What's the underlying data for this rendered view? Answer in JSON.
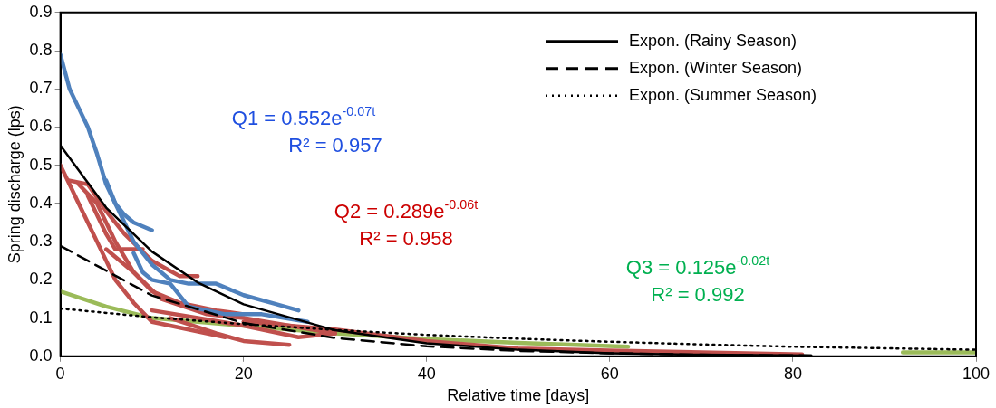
{
  "chart_data": {
    "type": "line",
    "xlabel": "Relative time [days]",
    "ylabel": "Spring discharge (lps)",
    "xlim": [
      0,
      100
    ],
    "xticks": [
      0,
      20,
      40,
      60,
      80,
      100
    ],
    "ylim": [
      0,
      0.9
    ],
    "yticks": [
      {
        "value": 0,
        "label": "0.0"
      },
      {
        "value": 0.1,
        "label": "0.1"
      },
      {
        "value": 0.2,
        "label": "0.2"
      },
      {
        "value": 0.3,
        "label": "0.3"
      },
      {
        "value": 0.4,
        "label": "0.4"
      },
      {
        "value": 0.5,
        "label": "0.5"
      },
      {
        "value": 0.6,
        "label": "0.6"
      },
      {
        "value": 0.7,
        "label": "0.7"
      },
      {
        "value": 0.8,
        "label": "0.8"
      },
      {
        "value": 0.9,
        "label": "0.9"
      }
    ],
    "grid": false,
    "legend": "top right",
    "marker": "none",
    "series": [
      {
        "color": "#4f81bd",
        "x": [
          0,
          1,
          2,
          3,
          4,
          5,
          6,
          7,
          8,
          9,
          10
        ],
        "values": [
          0.79,
          0.7,
          0.65,
          0.6,
          0.53,
          0.45,
          0.4,
          0.37,
          0.35,
          0.34,
          0.33
        ]
      },
      {
        "color": "#4f81bd",
        "x": [
          5,
          6,
          8,
          10,
          12,
          14,
          17,
          20,
          23,
          26
        ],
        "values": [
          0.46,
          0.4,
          0.3,
          0.24,
          0.2,
          0.19,
          0.19,
          0.16,
          0.14,
          0.12
        ]
      },
      {
        "color": "#4f81bd",
        "x": [
          8,
          9,
          10,
          12,
          14,
          18,
          22,
          27
        ],
        "values": [
          0.27,
          0.22,
          0.2,
          0.19,
          0.13,
          0.11,
          0.11,
          0.09
        ]
      },
      {
        "color": "#c0504d",
        "x": [
          0,
          2,
          4,
          6,
          8,
          10,
          14,
          18
        ],
        "values": [
          0.5,
          0.4,
          0.3,
          0.2,
          0.14,
          0.09,
          0.07,
          0.05
        ]
      },
      {
        "color": "#c0504d",
        "x": [
          1,
          3,
          5,
          7,
          10,
          13,
          15
        ],
        "values": [
          0.46,
          0.45,
          0.38,
          0.32,
          0.25,
          0.21,
          0.21
        ]
      },
      {
        "color": "#c0504d",
        "x": [
          2,
          4,
          6,
          8,
          10,
          13,
          17,
          20
        ],
        "values": [
          0.45,
          0.4,
          0.3,
          0.22,
          0.17,
          0.14,
          0.12,
          0.11
        ]
      },
      {
        "color": "#c0504d",
        "x": [
          3,
          5,
          6,
          9
        ],
        "values": [
          0.42,
          0.32,
          0.28,
          0.28
        ]
      },
      {
        "color": "#c0504d",
        "x": [
          5,
          8,
          11,
          16,
          20,
          25,
          30
        ],
        "values": [
          0.28,
          0.22,
          0.15,
          0.11,
          0.1,
          0.08,
          0.06
        ]
      },
      {
        "color": "#c0504d",
        "x": [
          10,
          15,
          20,
          26,
          30
        ],
        "values": [
          0.12,
          0.1,
          0.08,
          0.05,
          0.06
        ]
      },
      {
        "color": "#c0504d",
        "x": [
          12,
          17,
          20,
          25
        ],
        "values": [
          0.1,
          0.06,
          0.04,
          0.03
        ]
      },
      {
        "color": "#c0504d",
        "x": [
          20,
          30,
          40,
          50,
          60,
          70,
          81
        ],
        "values": [
          0.09,
          0.07,
          0.04,
          0.02,
          0.015,
          0.01,
          0.005
        ]
      },
      {
        "color": "#9bbb59",
        "x": [
          0,
          5,
          10,
          15,
          20,
          30,
          40,
          50,
          62,
          75,
          92,
          100
        ],
        "values": [
          0.17,
          0.13,
          0.1,
          0.09,
          0.08,
          0.06,
          0.045,
          0.035,
          0.025,
          null,
          0.01,
          0.01
        ]
      },
      {
        "name": "Expon. (Rainy Season)",
        "color": "#000000",
        "line_style": "solid",
        "x": [
          0,
          5,
          10,
          15,
          20,
          30,
          40,
          50,
          60,
          70,
          82
        ],
        "values": [
          0.552,
          0.389,
          0.274,
          0.193,
          0.136,
          0.068,
          0.034,
          0.017,
          0.008,
          0.004,
          0.002
        ]
      },
      {
        "name": "Expon. (Winter Season)",
        "color": "#000000",
        "line_style": "dashed",
        "x": [
          0,
          10,
          20,
          30,
          40,
          50,
          60,
          70,
          82
        ],
        "values": [
          0.289,
          0.159,
          0.087,
          0.048,
          0.026,
          0.014,
          0.008,
          0.004,
          0.002
        ]
      },
      {
        "name": "Expon. (Summer Season)",
        "color": "#000000",
        "line_style": "dotted",
        "x": [
          0,
          10,
          20,
          30,
          40,
          50,
          60,
          70,
          80,
          90,
          100
        ],
        "values": [
          0.125,
          0.102,
          0.084,
          0.069,
          0.056,
          0.046,
          0.038,
          0.031,
          0.025,
          0.021,
          0.017
        ]
      }
    ],
    "annotations": [
      "Q1 = 0.552e$^{-0.07t}$",
      "R² = 0.957",
      "Q2 = 0.289e$^{-0.06t}$",
      "R² = 0.958",
      "Q3 = 0.125e$^{-0.02t}$",
      "R² = 0.992"
    ]
  }
}
